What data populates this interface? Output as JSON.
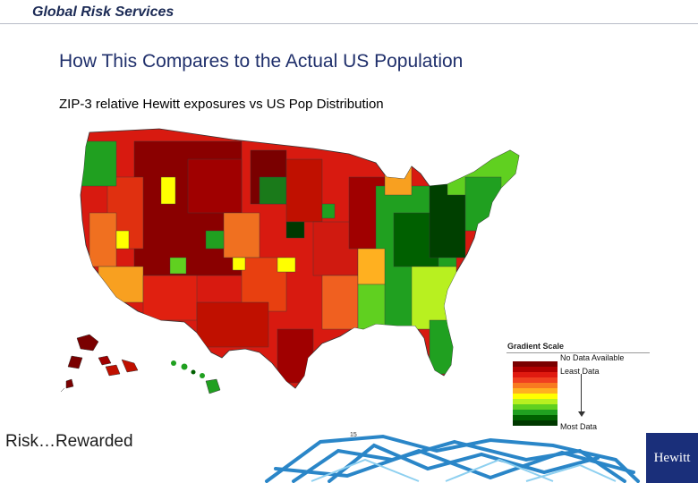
{
  "header": {
    "title": "Global Risk Services"
  },
  "slide": {
    "title": "How This Compares to the Actual US Population",
    "subtitle": "ZIP-3 relative Hewitt exposures vs US Pop Distribution"
  },
  "legend": {
    "title": "Gradient Scale",
    "no_data": "No Data Available",
    "least": "Least Data",
    "most": "Most Data",
    "colors": [
      "#7a0000",
      "#b00000",
      "#e01a10",
      "#f04020",
      "#f87a20",
      "#ffb020",
      "#ffff00",
      "#b8f020",
      "#60d020",
      "#20a020",
      "#006000",
      "#003800"
    ]
  },
  "footer": {
    "left": "Risk…Rewarded",
    "page_number": "15",
    "logo": "Hewitt"
  }
}
